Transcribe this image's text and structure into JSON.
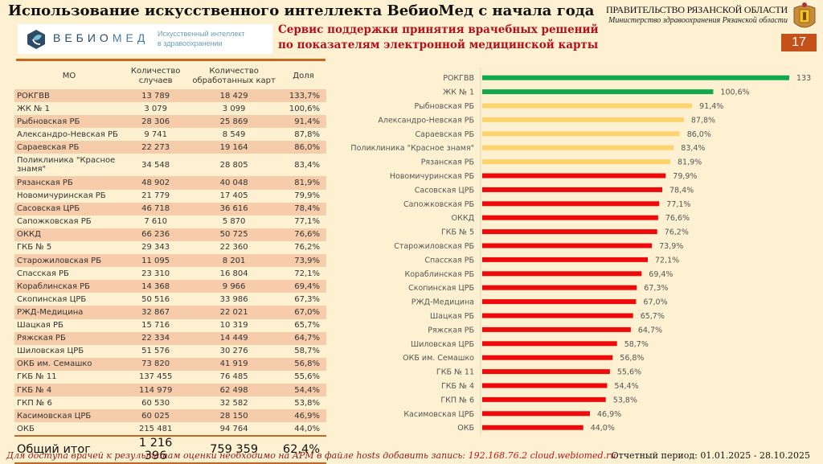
{
  "header": {
    "title": "Использование искусственного интеллекта ВебиоМед с начала года",
    "gov_line1": "ПРАВИТЕЛЬСТВО РЯЗАНСКОЙ ОБЛАСТИ",
    "gov_line2": "Министерство здравоохранения Рязанской области",
    "page_number": "17",
    "logo_brand_a": "ВЕБИО",
    "logo_brand_b": "МЕД",
    "logo_tagline1": "Искусственный интеллект",
    "logo_tagline2": "в здравоохранении",
    "subtitle1": "Сервис поддержки принятия врачебных решений",
    "subtitle2": "по показателям электронной медицинской карты"
  },
  "table": {
    "headers": [
      "МО",
      "Количество случаев",
      "Количество обработанных карт",
      "Доля"
    ],
    "rows": [
      {
        "mo": "РОКГВВ",
        "cases": "13 789",
        "cards": "18 429",
        "share": "133,7%"
      },
      {
        "mo": "ЖК № 1",
        "cases": "3 079",
        "cards": "3 099",
        "share": "100,6%"
      },
      {
        "mo": "Рыбновская РБ",
        "cases": "28 306",
        "cards": "25 869",
        "share": "91,4%"
      },
      {
        "mo": "Александро-Невская РБ",
        "cases": "9 741",
        "cards": "8 549",
        "share": "87,8%"
      },
      {
        "mo": "Сараевская РБ",
        "cases": "22 273",
        "cards": "19 164",
        "share": "86,0%"
      },
      {
        "mo": "Поликлиника \"Красное знамя\"",
        "cases": "34 548",
        "cards": "28 805",
        "share": "83,4%"
      },
      {
        "mo": "Рязанская РБ",
        "cases": "48 902",
        "cards": "40 048",
        "share": "81,9%"
      },
      {
        "mo": "Новомичуринская РБ",
        "cases": "21 779",
        "cards": "17 405",
        "share": "79,9%"
      },
      {
        "mo": "Сасовская ЦРБ",
        "cases": "46 718",
        "cards": "36 616",
        "share": "78,4%"
      },
      {
        "mo": "Сапожковская РБ",
        "cases": "7 610",
        "cards": "5 870",
        "share": "77,1%"
      },
      {
        "mo": "ОККД",
        "cases": "66 236",
        "cards": "50 725",
        "share": "76,6%"
      },
      {
        "mo": "ГКБ № 5",
        "cases": "29 343",
        "cards": "22 360",
        "share": "76,2%"
      },
      {
        "mo": "Старожиловская РБ",
        "cases": "11 095",
        "cards": "8 201",
        "share": "73,9%"
      },
      {
        "mo": "Спасская РБ",
        "cases": "23 310",
        "cards": "16 804",
        "share": "72,1%"
      },
      {
        "mo": "Кораблинская РБ",
        "cases": "14 368",
        "cards": "9 966",
        "share": "69,4%"
      },
      {
        "mo": "Скопинская ЦРБ",
        "cases": "50 516",
        "cards": "33 986",
        "share": "67,3%"
      },
      {
        "mo": "РЖД-Медицина",
        "cases": "32 867",
        "cards": "22 021",
        "share": "67,0%"
      },
      {
        "mo": "Шацкая РБ",
        "cases": "15 716",
        "cards": "10 319",
        "share": "65,7%"
      },
      {
        "mo": "Ряжская РБ",
        "cases": "22 334",
        "cards": "14 449",
        "share": "64,7%"
      },
      {
        "mo": "Шиловская ЦРБ",
        "cases": "51 576",
        "cards": "30 276",
        "share": "58,7%"
      },
      {
        "mo": "ОКБ им. Семашко",
        "cases": "73 820",
        "cards": "41 919",
        "share": "56,8%"
      },
      {
        "mo": "ГКБ № 11",
        "cases": "137 455",
        "cards": "76 485",
        "share": "55,6%"
      },
      {
        "mo": "ГКБ № 4",
        "cases": "114 979",
        "cards": "62 498",
        "share": "54,4%"
      },
      {
        "mo": "ГКП № 6",
        "cases": "60 530",
        "cards": "32 582",
        "share": "53,8%"
      },
      {
        "mo": "Касимовская ЦРБ",
        "cases": "60 025",
        "cards": "28 150",
        "share": "46,9%"
      },
      {
        "mo": "ОКБ",
        "cases": "215 481",
        "cards": "94 764",
        "share": "44,0%"
      }
    ],
    "total": {
      "mo": "Общий итог",
      "cases": "1 216 396",
      "cards": "759 359",
      "share": "62,4%"
    }
  },
  "footer": {
    "note": "Для доступа врачей к результатам оценки необходимо на АРМ в файле hosts добавить запись: ",
    "address": "192.168.76.2 cloud.webiomed.ru",
    "period": "Отчетный период: 01.01.2025 - 28.10.2025"
  },
  "colors": {
    "green": "#10a84a",
    "yellow": "#fdd36e",
    "red": "#ee0a0a",
    "accent": "#c8661f",
    "page_badge": "#c5511a"
  },
  "chart_data": {
    "type": "bar",
    "orientation": "horizontal",
    "title": "",
    "xlabel": "",
    "ylabel": "",
    "xlim": [
      0,
      140
    ],
    "grid": false,
    "legend": "none",
    "categories": [
      "РОКГВВ",
      "ЖК № 1",
      "Рыбновская РБ",
      "Александро-Невская РБ",
      "Сараевская РБ",
      "Поликлиника \"Красное знамя\"",
      "Рязанская РБ",
      "Новомичуринская РБ",
      "Сасовская ЦРБ",
      "Сапожковская РБ",
      "ОККД",
      "ГКБ № 5",
      "Старожиловская РБ",
      "Спасская РБ",
      "Кораблинская РБ",
      "Скопинская ЦРБ",
      "РЖД-Медицина",
      "Шацкая РБ",
      "Ряжская РБ",
      "Шиловская ЦРБ",
      "ОКБ им. Семашко",
      "ГКБ № 11",
      "ГКБ № 4",
      "ГКП № 6",
      "Касимовская ЦРБ",
      "ОКБ"
    ],
    "values": [
      133.7,
      100.6,
      91.4,
      87.8,
      86.0,
      83.4,
      81.9,
      79.9,
      78.4,
      77.1,
      76.6,
      76.2,
      73.9,
      72.1,
      69.4,
      67.3,
      67.0,
      65.7,
      64.7,
      58.7,
      56.8,
      55.6,
      54.4,
      53.8,
      46.9,
      44.0
    ],
    "labels": [
      "133,7%",
      "100,6%",
      "91,4%",
      "87,8%",
      "86,0%",
      "83,4%",
      "81,9%",
      "79,9%",
      "78,4%",
      "77,1%",
      "76,6%",
      "76,2%",
      "73,9%",
      "72,1%",
      "69,4%",
      "67,3%",
      "67,0%",
      "65,7%",
      "64,7%",
      "58,7%",
      "56,8%",
      "55,6%",
      "54,4%",
      "53,8%",
      "46,9%",
      "44,0%"
    ],
    "color_groups": [
      "green",
      "green",
      "yellow",
      "yellow",
      "yellow",
      "yellow",
      "yellow",
      "red",
      "red",
      "red",
      "red",
      "red",
      "red",
      "red",
      "red",
      "red",
      "red",
      "red",
      "red",
      "red",
      "red",
      "red",
      "red",
      "red",
      "red",
      "red"
    ]
  }
}
